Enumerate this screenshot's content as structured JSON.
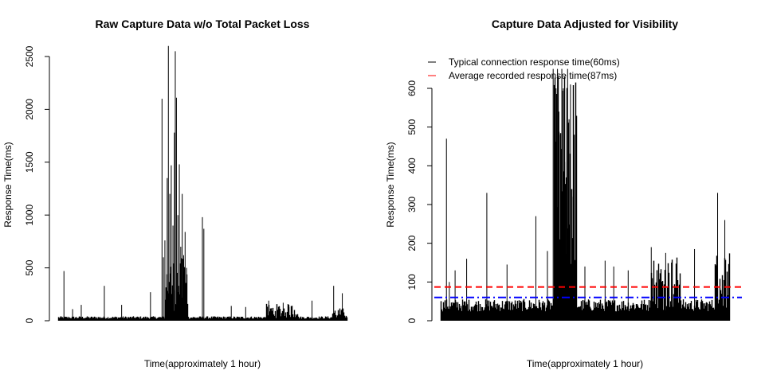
{
  "colors": {
    "data": "#000000",
    "typical": "#0000ff",
    "average": "#ff0000"
  },
  "chart_data": [
    {
      "type": "line",
      "title": "Raw Capture Data w/o Total Packet Loss",
      "xlabel": "Time(approximately 1 hour)",
      "ylabel": "Response Time(ms)",
      "xlim": [
        0,
        1
      ],
      "ylim": [
        0,
        2600
      ],
      "yticks": [
        0,
        500,
        1000,
        1500,
        2000,
        2500
      ],
      "y_tick_labels": [
        "0",
        "500",
        "1000",
        "1500",
        "2000",
        "2500"
      ],
      "show_x_ticks": false,
      "grid": false,
      "series": [
        {
          "style": "histogram-spikes",
          "baseline": 30,
          "spikes": [
            [
              0.02,
              470
            ],
            [
              0.05,
              110
            ],
            [
              0.08,
              150
            ],
            [
              0.16,
              330
            ],
            [
              0.22,
              150
            ],
            [
              0.32,
              270
            ],
            [
              0.36,
              2100
            ],
            [
              0.365,
              600
            ],
            [
              0.37,
              760
            ],
            [
              0.378,
              1350
            ],
            [
              0.382,
              2600
            ],
            [
              0.387,
              1200
            ],
            [
              0.392,
              1470
            ],
            [
              0.398,
              900
            ],
            [
              0.403,
              1780
            ],
            [
              0.406,
              2550
            ],
            [
              0.41,
              2110
            ],
            [
              0.415,
              1000
            ],
            [
              0.42,
              1480
            ],
            [
              0.425,
              700
            ],
            [
              0.43,
              1200
            ],
            [
              0.435,
              620
            ],
            [
              0.44,
              840
            ],
            [
              0.445,
              500
            ],
            [
              0.5,
              980
            ],
            [
              0.505,
              870
            ],
            [
              0.6,
              140
            ],
            [
              0.65,
              130
            ],
            [
              0.73,
              190
            ],
            [
              0.78,
              170
            ],
            [
              0.8,
              150
            ],
            [
              0.88,
              190
            ],
            [
              0.955,
              330
            ],
            [
              0.985,
              260
            ]
          ],
          "dense_regions": [
            {
              "x": [
                0.37,
                0.45
              ],
              "max": 600
            },
            {
              "x": [
                0.72,
                0.83
              ],
              "max": 160
            },
            {
              "x": [
                0.95,
                1.0
              ],
              "max": 120
            }
          ]
        }
      ]
    },
    {
      "type": "line",
      "title": "Capture Data Adjusted for Visibility",
      "xlabel": "Time(approximately 1 hour)",
      "ylabel": "Response Time(ms)",
      "xlim": [
        0,
        1
      ],
      "ylim": [
        0,
        650
      ],
      "yticks": [
        0,
        100,
        200,
        300,
        400,
        500,
        600
      ],
      "y_tick_labels": [
        "0",
        "100",
        "200",
        "300",
        "400",
        "500",
        "600"
      ],
      "show_x_ticks": false,
      "grid": false,
      "legend": {
        "position": "top-left",
        "entries": [
          {
            "label": "Typical connection response time(60ms)",
            "color": "#000000"
          },
          {
            "label": "Average recorded response time(87ms)",
            "color": "#ff0000"
          }
        ]
      },
      "reference_lines": [
        {
          "y": 87,
          "color": "#ff0000",
          "dash": "dashed"
        },
        {
          "y": 60,
          "color": "#0000ff",
          "dash": "dashdot"
        }
      ],
      "series": [
        {
          "style": "histogram-spikes",
          "baseline": 40,
          "spikes": [
            [
              0.02,
              470
            ],
            [
              0.03,
              100
            ],
            [
              0.05,
              130
            ],
            [
              0.09,
              160
            ],
            [
              0.16,
              330
            ],
            [
              0.23,
              145
            ],
            [
              0.33,
              270
            ],
            [
              0.37,
              180
            ],
            [
              0.39,
              650
            ],
            [
              0.395,
              535
            ],
            [
              0.4,
              600
            ],
            [
              0.405,
              650
            ],
            [
              0.41,
              540
            ],
            [
              0.415,
              480
            ],
            [
              0.42,
              650
            ],
            [
              0.425,
              600
            ],
            [
              0.43,
              410
            ],
            [
              0.435,
              370
            ],
            [
              0.44,
              650
            ],
            [
              0.445,
              520
            ],
            [
              0.45,
              610
            ],
            [
              0.455,
              320
            ],
            [
              0.46,
              420
            ],
            [
              0.47,
              310
            ],
            [
              0.5,
              140
            ],
            [
              0.57,
              155
            ],
            [
              0.6,
              140
            ],
            [
              0.65,
              130
            ],
            [
              0.73,
              190
            ],
            [
              0.78,
              175
            ],
            [
              0.8,
              150
            ],
            [
              0.88,
              185
            ],
            [
              0.96,
              330
            ],
            [
              0.985,
              260
            ]
          ],
          "dense_regions": [
            {
              "x": [
                0.39,
                0.47
              ],
              "max": 650
            },
            {
              "x": [
                0.72,
                0.83
              ],
              "max": 170
            },
            {
              "x": [
                0.95,
                1.0
              ],
              "max": 180
            }
          ]
        }
      ]
    }
  ]
}
